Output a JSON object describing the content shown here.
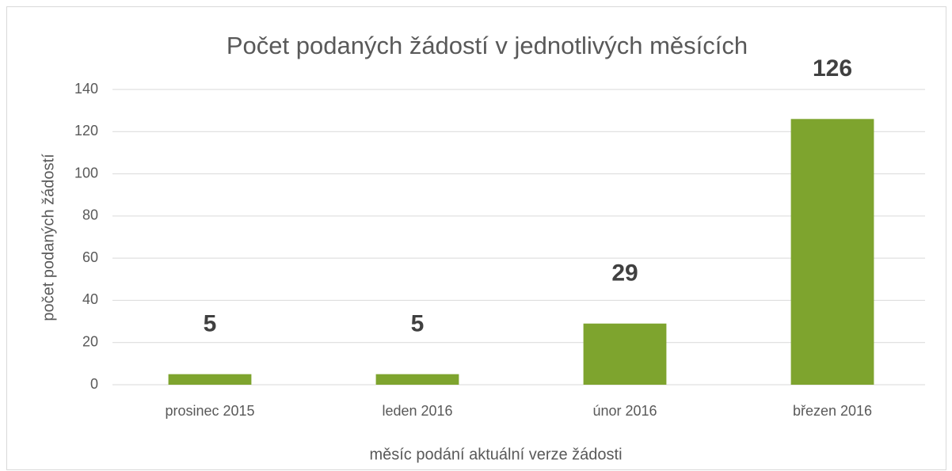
{
  "chart_data": {
    "type": "bar",
    "title": "Počet podaných žádostí v jednotlivých měsících",
    "x_label": "měsíc podání aktuální verze žádosti",
    "y_label": "počet podaných žádostí",
    "categories": [
      "prosinec 2015",
      "leden 2016",
      "únor 2016",
      "březen 2016"
    ],
    "values": [
      5,
      5,
      29,
      126
    ],
    "color": "#7ea42e",
    "ylim": [
      0,
      140
    ],
    "yticks": [
      0,
      20,
      40,
      60,
      80,
      100,
      120,
      140
    ],
    "grid": true
  }
}
